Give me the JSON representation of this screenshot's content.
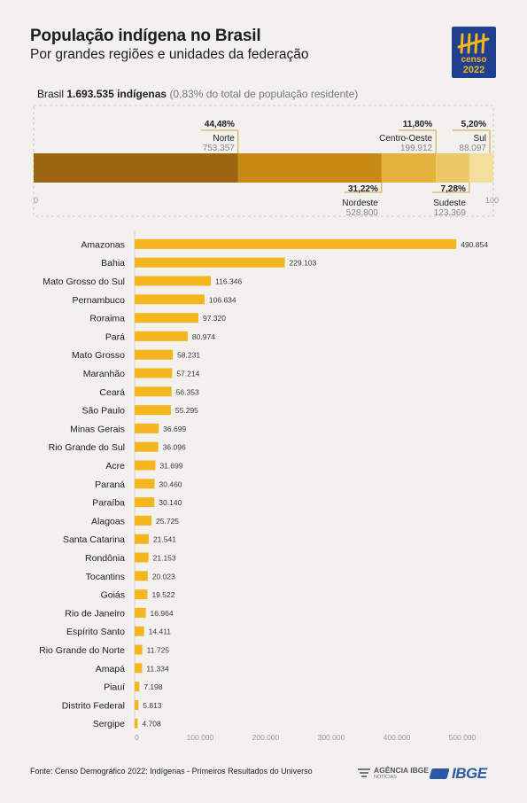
{
  "header": {
    "title": "População indígena no Brasil",
    "subtitle": "Por grandes regiões e unidades da federação"
  },
  "logo": {
    "line1": "censo",
    "line2": "2022",
    "bg_color": "#1f3f8f",
    "accent_color": "#f3b61f"
  },
  "summary": {
    "prefix": "Brasil",
    "total": "1.693.535 indígenas",
    "note": "(0,83% do total de população residente)"
  },
  "chart_data": [
    {
      "type": "bar",
      "orientation": "horizontal-stacked",
      "axis_min_label": "0",
      "axis_max_label": "100",
      "xlim": [
        0,
        100
      ],
      "series": [
        {
          "name": "Norte",
          "percent": 44.48,
          "percent_label": "44,48%",
          "value_label": "753.357",
          "label_position": "top",
          "color": "#9c6610"
        },
        {
          "name": "Nordeste",
          "percent": 31.22,
          "percent_label": "31,22%",
          "value_label": "528.800",
          "label_position": "bottom",
          "color": "#c98a14"
        },
        {
          "name": "Centro-Oeste",
          "percent": 11.8,
          "percent_label": "11,80%",
          "value_label": "199.912",
          "label_position": "top",
          "color": "#e3b33b"
        },
        {
          "name": "Sudeste",
          "percent": 7.28,
          "percent_label": "7,28%",
          "value_label": "123.369",
          "label_position": "bottom",
          "color": "#ecc867"
        },
        {
          "name": "Sul",
          "percent": 5.2,
          "percent_label": "5,20%",
          "value_label": "88.097",
          "label_position": "top",
          "color": "#f3df9a"
        }
      ]
    },
    {
      "type": "bar",
      "orientation": "horizontal",
      "bar_color": "#f3b61f",
      "xlim": [
        0,
        500000
      ],
      "ticks": [
        0,
        100000,
        200000,
        300000,
        400000,
        500000
      ],
      "tick_labels": [
        "0",
        "100.000",
        "200.000",
        "300.000",
        "400.000",
        "500.000"
      ],
      "grid": false,
      "categories": [
        "Amazonas",
        "Bahia",
        "Mato Grosso do Sul",
        "Pernambuco",
        "Roraima",
        "Pará",
        "Mato Grosso",
        "Maranhão",
        "Ceará",
        "São Paulo",
        "Minas Gerais",
        "Rio Grande do Sul",
        "Acre",
        "Paraná",
        "Paraíba",
        "Alagoas",
        "Santa Catarina",
        "Rondônia",
        "Tocantins",
        "Goiás",
        "Rio de Janeiro",
        "Espírito Santo",
        "Rio Grande do Norte",
        "Amapá",
        "Piauí",
        "Distrito Federal",
        "Sergipe"
      ],
      "values": [
        490854,
        229103,
        116346,
        106634,
        97320,
        80974,
        58231,
        57214,
        56353,
        55295,
        36699,
        36096,
        31699,
        30460,
        30140,
        25725,
        21541,
        21153,
        20023,
        19522,
        16964,
        14411,
        11725,
        11334,
        7198,
        5813,
        4708
      ],
      "value_labels": [
        "490.854",
        "229.103",
        "116.346",
        "106.634",
        "97.320",
        "80.974",
        "58.231",
        "57.214",
        "56.353",
        "55.295",
        "36.699",
        "36.096",
        "31.699",
        "30.460",
        "30.140",
        "25.725",
        "21.541",
        "21.153",
        "20.023",
        "19.522",
        "16.964",
        "14.411",
        "11.725",
        "11.334",
        "7.198",
        "5.813",
        "4.708"
      ]
    }
  ],
  "footer": {
    "source": "Fonte: Censo Demográfico 2022: Indígenas - Primeiros Resultados do Universo",
    "agencia_line1": "AGÊNCIA IBGE",
    "agencia_line2": "NOTÍCIAS",
    "ibge": "IBGE"
  }
}
